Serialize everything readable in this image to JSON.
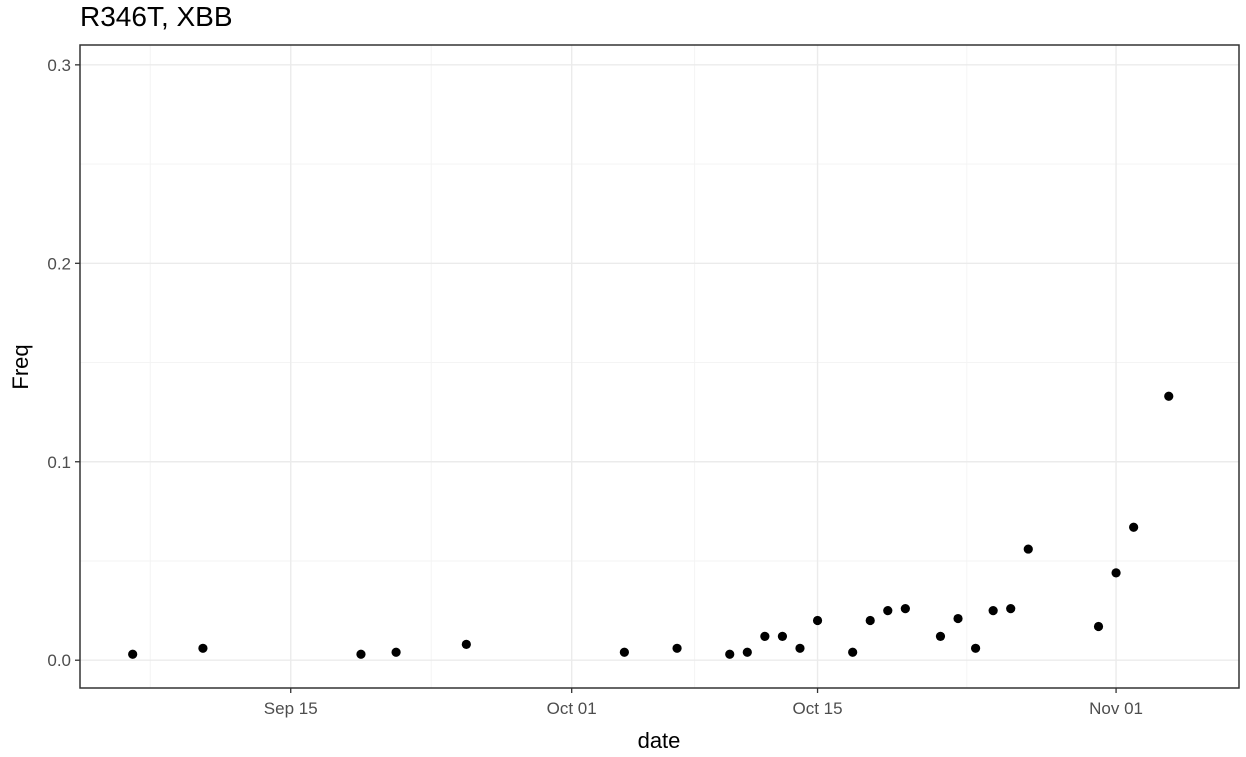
{
  "chart_data": {
    "type": "scatter",
    "title": "R346T, XBB",
    "xlabel": "date",
    "ylabel": "Freq",
    "x_type": "date",
    "xlim": [
      "2022-09-03",
      "2022-11-08"
    ],
    "ylim": [
      -0.014,
      0.31
    ],
    "x_ticks": [
      {
        "date": "2022-09-15",
        "label": "Sep 15"
      },
      {
        "date": "2022-10-01",
        "label": "Oct 01"
      },
      {
        "date": "2022-10-15",
        "label": "Oct 15"
      },
      {
        "date": "2022-11-01",
        "label": "Nov 01"
      }
    ],
    "y_ticks": [
      {
        "value": 0.0,
        "label": "0.0"
      },
      {
        "value": 0.1,
        "label": "0.1"
      },
      {
        "value": 0.2,
        "label": "0.2"
      },
      {
        "value": 0.3,
        "label": "0.3"
      }
    ],
    "grid": true,
    "legend": "none",
    "point_color": "#000000",
    "series": [
      {
        "points": [
          {
            "x": "2022-09-06",
            "y": 0.003
          },
          {
            "x": "2022-09-10",
            "y": 0.006
          },
          {
            "x": "2022-09-19",
            "y": 0.003
          },
          {
            "x": "2022-09-21",
            "y": 0.004
          },
          {
            "x": "2022-09-25",
            "y": 0.008
          },
          {
            "x": "2022-10-04",
            "y": 0.004
          },
          {
            "x": "2022-10-07",
            "y": 0.006
          },
          {
            "x": "2022-10-10",
            "y": 0.003
          },
          {
            "x": "2022-10-11",
            "y": 0.004
          },
          {
            "x": "2022-10-12",
            "y": 0.012
          },
          {
            "x": "2022-10-13",
            "y": 0.012
          },
          {
            "x": "2022-10-14",
            "y": 0.006
          },
          {
            "x": "2022-10-15",
            "y": 0.02
          },
          {
            "x": "2022-10-17",
            "y": 0.004
          },
          {
            "x": "2022-10-18",
            "y": 0.02
          },
          {
            "x": "2022-10-19",
            "y": 0.025
          },
          {
            "x": "2022-10-20",
            "y": 0.026
          },
          {
            "x": "2022-10-22",
            "y": 0.012
          },
          {
            "x": "2022-10-23",
            "y": 0.021
          },
          {
            "x": "2022-10-24",
            "y": 0.006
          },
          {
            "x": "2022-10-25",
            "y": 0.025
          },
          {
            "x": "2022-10-26",
            "y": 0.026
          },
          {
            "x": "2022-10-27",
            "y": 0.056
          },
          {
            "x": "2022-10-31",
            "y": 0.017
          },
          {
            "x": "2022-11-01",
            "y": 0.044
          },
          {
            "x": "2022-11-02",
            "y": 0.067
          },
          {
            "x": "2022-11-04",
            "y": 0.133
          }
        ]
      }
    ]
  }
}
